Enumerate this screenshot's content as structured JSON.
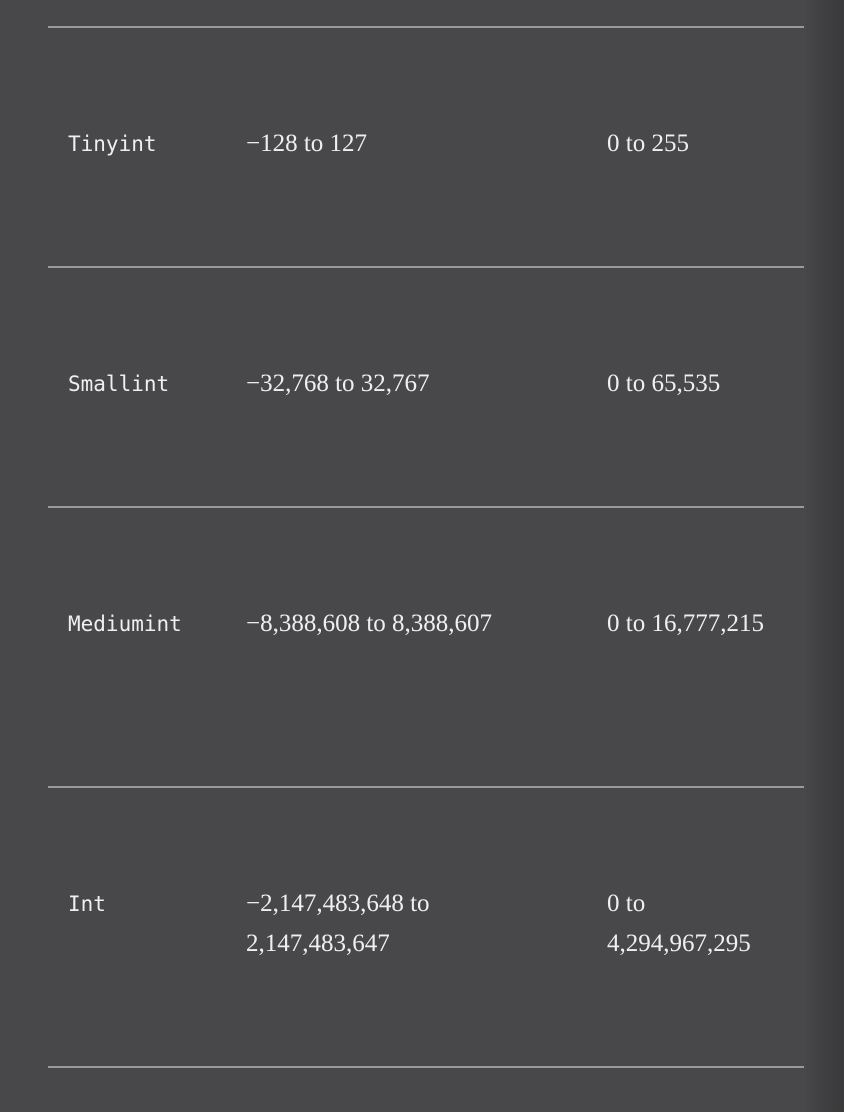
{
  "table": {
    "rows": [
      {
        "type": "Tinyint",
        "signed": "−128 to 127",
        "unsigned": "0 to 255"
      },
      {
        "type": "Smallint",
        "signed": "−32,768 to 32,767",
        "unsigned": "0 to 65,535"
      },
      {
        "type": "Mediumint",
        "signed": "−8,388,608 to 8,388,607",
        "unsigned": "0 to 16,777,215"
      },
      {
        "type": "Int",
        "signed": "−2,147,483,648 to 2,147,483,647",
        "unsigned": "0 to 4,294,967,295"
      }
    ]
  }
}
